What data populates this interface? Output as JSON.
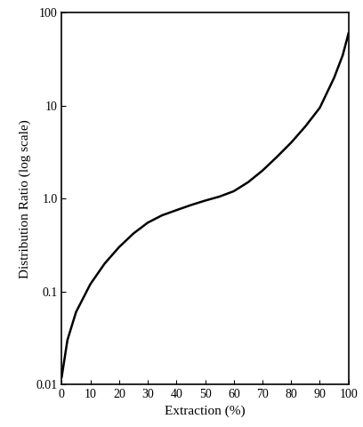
{
  "chart_data": {
    "type": "line",
    "x_label": "Extraction (%)",
    "y_label": "Distribution Ratio (log scale)",
    "x": [
      0,
      2,
      5,
      10,
      15,
      20,
      25,
      30,
      35,
      40,
      45,
      50,
      55,
      60,
      65,
      70,
      75,
      80,
      85,
      90,
      95,
      98,
      100
    ],
    "values": [
      0.012,
      0.03,
      0.06,
      0.12,
      0.2,
      0.3,
      0.42,
      0.55,
      0.66,
      0.75,
      0.85,
      0.95,
      1.05,
      1.2,
      1.5,
      2.0,
      2.8,
      4.0,
      6.0,
      9.5,
      20,
      35,
      60
    ],
    "color": "#000000",
    "log": "y",
    "grid": false,
    "xlim": [
      0,
      100
    ],
    "xticks": [
      0,
      10,
      20,
      30,
      40,
      50,
      60,
      70,
      80,
      90,
      100
    ],
    "ylim": [
      0.01,
      100
    ],
    "yticks": [
      0.01,
      0.1,
      {
        "value": 1,
        "label": "1.0"
      },
      10,
      100
    ]
  }
}
